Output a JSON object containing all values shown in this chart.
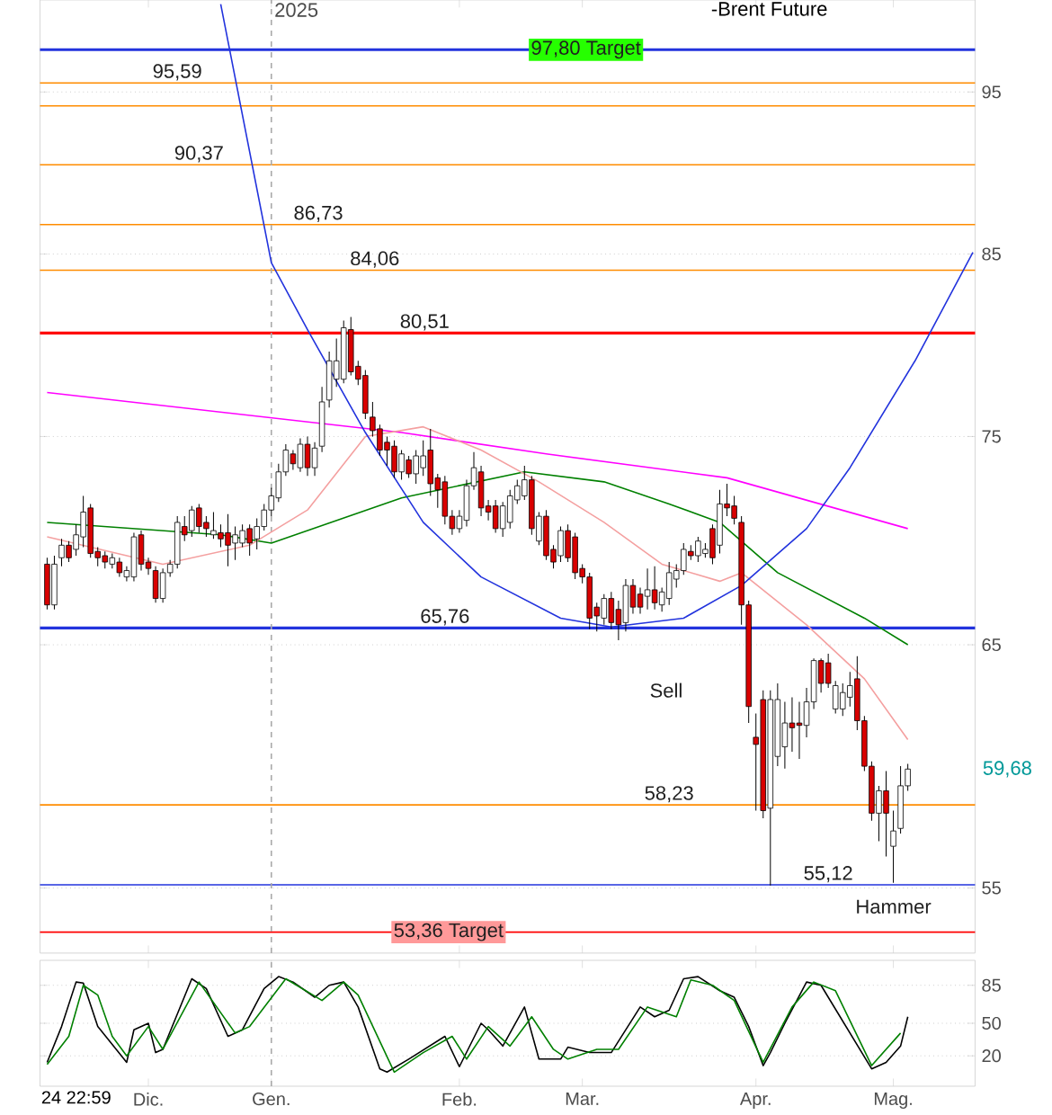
{
  "chart_data": [
    {
      "type": "candlestick",
      "title": "-Brent Future",
      "log": true,
      "grid": "y",
      "tick_labels": "y",
      "ylim": [
        52.6,
        101.2
      ],
      "yticks": [
        55,
        65,
        75,
        85,
        95
      ],
      "categories": [
        null,
        null,
        null,
        null,
        null,
        null,
        null,
        null,
        null,
        null,
        null,
        null,
        null,
        null,
        "Dic.",
        null,
        null,
        null,
        null,
        null,
        null,
        null,
        null,
        null,
        null,
        null,
        null,
        null,
        null,
        null,
        null,
        "Gen.",
        null,
        null,
        null,
        null,
        null,
        null,
        null,
        null,
        null,
        null,
        null,
        null,
        null,
        null,
        null,
        null,
        null,
        null,
        null,
        null,
        null,
        null,
        null,
        null,
        null,
        "Feb.",
        null,
        null,
        null,
        null,
        null,
        null,
        null,
        null,
        null,
        null,
        null,
        null,
        null,
        null,
        null,
        null,
        "Mar.",
        null,
        null,
        null,
        null,
        null,
        null,
        null,
        null,
        null,
        null,
        null,
        null,
        null,
        null,
        null,
        null,
        null,
        null,
        null,
        null,
        null,
        null,
        null,
        "Apr.",
        null,
        null,
        null,
        null,
        null,
        null,
        null,
        null,
        null,
        null,
        null,
        null,
        null,
        null,
        null,
        null,
        null,
        null,
        "Mag.",
        null,
        null,
        null,
        null,
        null,
        null,
        null,
        null,
        null,
        null,
        null
      ],
      "ohlc": [
        [
          68.7,
          69.0,
          66.6,
          66.8
        ],
        [
          66.8,
          69.1,
          66.6,
          68.7
        ],
        [
          69.0,
          69.9,
          68.6,
          69.6
        ],
        [
          69.6,
          69.8,
          68.8,
          69.0
        ],
        [
          69.4,
          70.6,
          69.1,
          70.1
        ],
        [
          70.0,
          72.0,
          69.5,
          71.2
        ],
        [
          71.4,
          71.6,
          69.0,
          69.2
        ],
        [
          69.3,
          69.5,
          68.6,
          69.0
        ],
        [
          69.1,
          69.3,
          68.5,
          68.8
        ],
        [
          68.7,
          69.2,
          68.5,
          69.0
        ],
        [
          68.8,
          69.0,
          68.1,
          68.3
        ],
        [
          68.1,
          68.6,
          67.9,
          68.4
        ],
        [
          68.1,
          70.2,
          67.9,
          70.0
        ],
        [
          70.1,
          70.3,
          68.4,
          68.7
        ],
        [
          68.8,
          69.0,
          68.2,
          68.5
        ],
        [
          68.4,
          68.6,
          66.9,
          67.1
        ],
        [
          67.1,
          68.5,
          66.9,
          68.3
        ],
        [
          68.3,
          68.9,
          68.1,
          68.7
        ],
        [
          68.7,
          71.0,
          68.5,
          70.7
        ],
        [
          70.5,
          71.0,
          69.8,
          70.1
        ],
        [
          70.3,
          71.5,
          70.0,
          71.3
        ],
        [
          71.4,
          71.6,
          70.2,
          70.5
        ],
        [
          70.7,
          71.0,
          70.0,
          70.4
        ],
        [
          70.1,
          71.2,
          69.9,
          70.3
        ],
        [
          70.2,
          70.6,
          69.5,
          69.9
        ],
        [
          70.2,
          71.1,
          68.6,
          69.6
        ],
        [
          69.7,
          70.5,
          68.9,
          70.1
        ],
        [
          69.7,
          70.6,
          69.5,
          70.3
        ],
        [
          70.4,
          70.6,
          69.1,
          69.7
        ],
        [
          69.9,
          70.9,
          69.4,
          70.5
        ],
        [
          70.5,
          71.6,
          70.3,
          71.3
        ],
        [
          71.3,
          72.4,
          71.0,
          72.0
        ],
        [
          71.9,
          73.6,
          71.7,
          73.2
        ],
        [
          73.2,
          74.6,
          73.0,
          74.3
        ],
        [
          74.1,
          74.3,
          73.3,
          73.6
        ],
        [
          73.4,
          74.9,
          73.2,
          74.6
        ],
        [
          74.6,
          75.0,
          73.0,
          73.4
        ],
        [
          73.4,
          74.7,
          73.0,
          74.4
        ],
        [
          74.5,
          77.6,
          74.2,
          76.8
        ],
        [
          76.9,
          79.5,
          76.5,
          79.0
        ],
        [
          78.0,
          80.2,
          77.6,
          79.0
        ],
        [
          78.0,
          81.2,
          77.8,
          80.8
        ],
        [
          80.7,
          81.4,
          78.2,
          78.4
        ],
        [
          78.7,
          79.0,
          77.7,
          78.0
        ],
        [
          78.2,
          78.5,
          75.9,
          76.2
        ],
        [
          76.0,
          76.8,
          75.0,
          75.3
        ],
        [
          75.4,
          75.6,
          74.0,
          74.3
        ],
        [
          74.7,
          75.0,
          73.5,
          74.3
        ],
        [
          74.5,
          74.8,
          72.9,
          73.2
        ],
        [
          73.2,
          74.3,
          72.8,
          74.1
        ],
        [
          73.8,
          74.0,
          72.9,
          73.1
        ],
        [
          73.1,
          74.3,
          72.6,
          74.0
        ],
        [
          73.4,
          74.8,
          73.0,
          74.0
        ],
        [
          74.3,
          75.4,
          72.0,
          72.6
        ],
        [
          72.9,
          73.1,
          71.4,
          72.3
        ],
        [
          72.7,
          73.0,
          70.6,
          71.0
        ],
        [
          71.0,
          71.3,
          70.1,
          70.4
        ],
        [
          70.4,
          71.3,
          70.2,
          71.0
        ],
        [
          70.8,
          72.8,
          70.5,
          72.5
        ],
        [
          72.5,
          74.2,
          72.3,
          73.4
        ],
        [
          73.2,
          73.5,
          71.0,
          71.4
        ],
        [
          71.5,
          71.8,
          70.8,
          71.2
        ],
        [
          71.5,
          71.8,
          70.2,
          70.4
        ],
        [
          70.4,
          71.7,
          70.0,
          71.5
        ],
        [
          70.7,
          72.3,
          70.4,
          72.0
        ],
        [
          71.8,
          72.8,
          71.6,
          72.5
        ],
        [
          72.0,
          73.5,
          71.8,
          72.8
        ],
        [
          72.8,
          73.0,
          70.1,
          70.4
        ],
        [
          69.8,
          71.2,
          69.6,
          71.0
        ],
        [
          71.0,
          71.3,
          68.9,
          69.1
        ],
        [
          69.4,
          69.6,
          68.5,
          68.8
        ],
        [
          69.1,
          70.5,
          68.8,
          70.3
        ],
        [
          70.3,
          70.6,
          68.8,
          69.0
        ],
        [
          70.0,
          70.2,
          68.0,
          68.3
        ],
        [
          68.5,
          68.7,
          67.8,
          68.1
        ],
        [
          68.1,
          68.3,
          65.7,
          66.2
        ],
        [
          66.7,
          66.9,
          65.6,
          66.3
        ],
        [
          66.2,
          67.3,
          65.9,
          67.1
        ],
        [
          67.1,
          67.4,
          65.7,
          66.0
        ],
        [
          66.6,
          67.0,
          65.2,
          65.9
        ],
        [
          66.0,
          68.0,
          65.6,
          67.7
        ],
        [
          67.7,
          68.0,
          66.4,
          66.7
        ],
        [
          67.3,
          67.6,
          66.4,
          66.7
        ],
        [
          67.2,
          68.5,
          66.6,
          67.5
        ],
        [
          67.5,
          68.6,
          66.6,
          66.9
        ],
        [
          66.8,
          67.6,
          66.5,
          67.4
        ],
        [
          67.1,
          68.8,
          66.8,
          68.3
        ],
        [
          68.0,
          68.7,
          67.6,
          68.4
        ],
        [
          68.4,
          69.7,
          68.2,
          69.4
        ],
        [
          69.3,
          69.6,
          68.9,
          69.1
        ],
        [
          69.1,
          70.0,
          68.8,
          69.8
        ],
        [
          69.2,
          69.7,
          69.0,
          69.4
        ],
        [
          70.4,
          70.6,
          68.7,
          69.0
        ],
        [
          69.6,
          72.3,
          69.2,
          71.6
        ],
        [
          71.6,
          72.6,
          71.0,
          71.4
        ],
        [
          71.5,
          72.0,
          70.6,
          70.9
        ],
        [
          70.7,
          71.0,
          65.9,
          66.8
        ],
        [
          66.8,
          67.0,
          61.6,
          62.3
        ],
        [
          61.0,
          62.0,
          58.0,
          60.7
        ],
        [
          62.6,
          63.0,
          57.7,
          58.0
        ],
        [
          58.1,
          63.0,
          55.1,
          62.6
        ],
        [
          60.2,
          63.3,
          59.8,
          62.6
        ],
        [
          60.6,
          62.5,
          59.7,
          61.6
        ],
        [
          61.6,
          62.7,
          60.4,
          61.4
        ],
        [
          61.6,
          62.5,
          60.1,
          61.5
        ],
        [
          61.5,
          63.1,
          61.0,
          62.5
        ],
        [
          62.5,
          64.4,
          62.2,
          64.3
        ],
        [
          64.3,
          64.4,
          62.9,
          63.3
        ],
        [
          64.2,
          64.6,
          63.1,
          63.3
        ],
        [
          62.2,
          63.4,
          62.0,
          63.2
        ],
        [
          62.2,
          63.3,
          61.9,
          62.9
        ],
        [
          62.7,
          63.8,
          62.3,
          63.2
        ],
        [
          63.5,
          64.5,
          61.3,
          61.7
        ],
        [
          61.7,
          61.9,
          59.6,
          59.8
        ],
        [
          59.8,
          60.0,
          57.6,
          57.9
        ],
        [
          57.9,
          59.0,
          56.8,
          58.8
        ],
        [
          58.8,
          59.6,
          56.2,
          57.9
        ],
        [
          56.6,
          58.0,
          55.2,
          57.2
        ],
        [
          57.3,
          59.8,
          57.1,
          59.0
        ],
        [
          59.0,
          59.9,
          58.8,
          59.68
        ],
        null,
        null,
        null,
        null,
        null,
        null,
        null,
        null,
        null
      ],
      "series": [
        {
          "type": "line",
          "color": "#008000",
          "values": [
            70.7,
            null,
            null,
            null,
            null,
            null,
            null,
            null,
            null,
            null,
            null,
            null,
            null,
            null,
            null,
            null,
            null,
            null,
            null,
            null,
            null,
            null,
            null,
            null,
            70.1,
            null,
            null,
            null,
            null,
            null,
            null,
            69.7,
            null,
            null,
            null,
            null,
            null,
            null,
            null,
            null,
            null,
            null,
            null,
            null,
            null,
            null,
            null,
            null,
            null,
            71.9,
            null,
            null,
            null,
            null,
            null,
            null,
            null,
            null,
            null,
            null,
            null,
            null,
            null,
            null,
            null,
            null,
            73.2,
            null,
            null,
            null,
            null,
            null,
            null,
            null,
            null,
            null,
            null,
            72.7,
            null,
            null,
            null,
            null,
            null,
            null,
            null,
            null,
            71.6,
            null,
            null,
            null,
            null,
            null,
            null,
            70.7,
            null,
            null,
            null,
            null,
            null,
            null,
            null,
            68.3,
            null,
            null,
            null,
            null,
            null,
            null,
            null,
            null,
            null,
            null,
            null,
            66.2,
            null,
            null,
            null,
            null,
            null,
            65.0,
            null,
            null,
            null,
            null,
            null,
            null,
            null,
            null,
            null
          ]
        },
        {
          "type": "line",
          "color": "#ff00ff",
          "values": [
            77.3,
            null,
            null,
            null,
            null,
            null,
            null,
            null,
            null,
            null,
            null,
            null,
            null,
            null,
            null,
            null,
            null,
            null,
            null,
            null,
            null,
            null,
            null,
            null,
            null,
            null,
            null,
            null,
            null,
            null,
            null,
            null,
            null,
            null,
            null,
            null,
            null,
            null,
            null,
            null,
            null,
            null,
            null,
            null,
            null,
            null,
            null,
            null,
            null,
            75.2,
            null,
            null,
            null,
            null,
            null,
            null,
            null,
            null,
            null,
            null,
            null,
            null,
            null,
            null,
            null,
            null,
            null,
            null,
            null,
            74.1,
            null,
            null,
            null,
            null,
            null,
            null,
            null,
            null,
            null,
            null,
            null,
            null,
            null,
            null,
            null,
            null,
            null,
            null,
            null,
            null,
            null,
            null,
            null,
            null,
            72.9,
            null,
            null,
            null,
            null,
            null,
            null,
            null,
            null,
            null,
            null,
            null,
            null,
            null,
            null,
            null,
            null,
            null,
            null,
            null,
            null,
            null,
            null,
            null,
            null,
            70.4,
            null,
            null,
            null,
            null,
            null,
            null,
            null,
            null,
            null
          ]
        },
        {
          "type": "line",
          "color": "#f4a0a0",
          "values": [
            70.0,
            null,
            null,
            null,
            null,
            null,
            null,
            null,
            null,
            null,
            null,
            null,
            null,
            null,
            null,
            null,
            68.7,
            null,
            null,
            null,
            null,
            null,
            null,
            null,
            null,
            null,
            null,
            null,
            69.6,
            null,
            null,
            null,
            null,
            null,
            null,
            null,
            71.3,
            null,
            null,
            null,
            null,
            null,
            null,
            null,
            75.0,
            null,
            null,
            null,
            null,
            null,
            null,
            null,
            75.5,
            null,
            null,
            null,
            null,
            null,
            null,
            null,
            74.3,
            null,
            null,
            null,
            null,
            null,
            null,
            null,
            72.7,
            null,
            null,
            null,
            null,
            null,
            null,
            null,
            null,
            70.7,
            null,
            null,
            null,
            null,
            null,
            null,
            null,
            68.7,
            null,
            null,
            null,
            null,
            null,
            null,
            null,
            67.9,
            null,
            null,
            68.3,
            null,
            null,
            null,
            null,
            null,
            null,
            null,
            null,
            65.9,
            null,
            null,
            null,
            null,
            null,
            null,
            null,
            63.5,
            null,
            null,
            null,
            null,
            null,
            60.9,
            null,
            null,
            null,
            null,
            null,
            null,
            null,
            null,
            null
          ]
        },
        {
          "type": "line",
          "color": "#2233dd",
          "values": [
            null,
            null,
            null,
            null,
            null,
            null,
            null,
            null,
            null,
            null,
            null,
            null,
            null,
            null,
            null,
            null,
            null,
            null,
            null,
            null,
            null,
            null,
            null,
            null,
            100.9,
            null,
            null,
            null,
            null,
            null,
            null,
            84.5,
            null,
            null,
            null,
            null,
            80.7,
            null,
            null,
            null,
            null,
            null,
            null,
            null,
            75.2,
            null,
            null,
            null,
            null,
            null,
            null,
            null,
            70.7,
            null,
            null,
            null,
            null,
            null,
            null,
            null,
            68.1,
            null,
            null,
            null,
            null,
            null,
            null,
            null,
            null,
            null,
            null,
            66.2,
            null,
            null,
            null,
            null,
            null,
            null,
            65.8,
            null,
            null,
            null,
            null,
            null,
            null,
            null,
            null,
            null,
            66.2,
            null,
            null,
            null,
            null,
            null,
            null,
            null,
            67.7,
            null,
            null,
            null,
            null,
            null,
            null,
            null,
            null,
            70.4,
            null,
            null,
            null,
            null,
            null,
            73.4,
            null,
            null,
            null,
            null,
            null,
            null,
            null,
            null,
            79.0,
            null,
            null,
            null,
            null,
            null,
            null,
            null,
            85.1
          ]
        }
      ],
      "ref_lines": [
        {
          "axis": "y",
          "value": 97.8,
          "label": "97,80 Target",
          "color": "#2233dd"
        },
        {
          "axis": "y",
          "value": 95.59,
          "label": "95,59",
          "color": "#ff8c00"
        },
        {
          "axis": "y",
          "value": 94.1,
          "color": "#ff8c00"
        },
        {
          "axis": "y",
          "value": 90.37,
          "label": "90,37",
          "color": "#ff8c00"
        },
        {
          "axis": "y",
          "value": 86.73,
          "label": "86,73",
          "color": "#ff8c00"
        },
        {
          "axis": "y",
          "value": 84.06,
          "label": "84,06",
          "color": "#ff8c00"
        },
        {
          "axis": "y",
          "value": 80.51,
          "label": "80,51",
          "color": "#ff0000"
        },
        {
          "axis": "y",
          "value": 65.76,
          "label": "65,76",
          "color": "#2233dd"
        },
        {
          "axis": "y",
          "value": 58.23,
          "label": "58,23",
          "color": "#ff8c00"
        },
        {
          "axis": "y",
          "value": 55.12,
          "label": "55,12",
          "color": "#2233dd"
        },
        {
          "axis": "y",
          "value": 53.36,
          "label": "53,36 Target",
          "color": "#ff0000"
        },
        {
          "axis": "x",
          "value": "Gen.",
          "label": "2025",
          "color": "#aaaaaa",
          "line_style": "dashed"
        }
      ],
      "annotations": [
        "Sell",
        "Hammer",
        "59,68"
      ]
    },
    {
      "type": "line",
      "grid": "y",
      "ylim": [
        -8,
        108
      ],
      "categories": [
        null,
        null,
        null,
        null,
        null,
        null,
        null,
        null,
        null,
        null,
        null,
        null,
        null,
        null,
        "Dic.",
        null,
        null,
        null,
        null,
        null,
        null,
        null,
        null,
        null,
        null,
        null,
        null,
        null,
        null,
        null,
        null,
        "Gen.",
        null,
        null,
        null,
        null,
        null,
        null,
        null,
        null,
        null,
        null,
        null,
        null,
        null,
        null,
        null,
        null,
        null,
        null,
        null,
        null,
        null,
        null,
        null,
        null,
        null,
        "Feb.",
        null,
        null,
        null,
        null,
        null,
        null,
        null,
        null,
        null,
        null,
        null,
        null,
        null,
        null,
        null,
        null,
        "Mar.",
        null,
        null,
        null,
        null,
        null,
        null,
        null,
        null,
        null,
        null,
        null,
        null,
        null,
        null,
        null,
        null,
        null,
        null,
        null,
        null,
        null,
        null,
        null,
        "Apr.",
        null,
        null,
        null,
        null,
        null,
        null,
        null,
        null,
        null,
        null,
        null,
        null,
        null,
        null,
        null,
        null,
        null,
        null,
        "Mag.",
        null,
        null,
        null,
        null,
        null,
        null,
        null,
        null,
        null,
        null,
        null
      ],
      "yticks": [
        20,
        50,
        85
      ],
      "series": [
        {
          "color": "#000000",
          "values": [
            14,
            null,
            47,
            null,
            88,
            87,
            null,
            47,
            null,
            null,
            null,
            14,
            44,
            null,
            50,
            23,
            26,
            null,
            null,
            null,
            91,
            null,
            82,
            null,
            null,
            38,
            null,
            44,
            null,
            null,
            82,
            null,
            93,
            null,
            88,
            null,
            null,
            74,
            null,
            85,
            null,
            88,
            null,
            65,
            null,
            null,
            8,
            5,
            null,
            null,
            17,
            null,
            null,
            null,
            null,
            38,
            null,
            10,
            null,
            null,
            50,
            44,
            null,
            29,
            null,
            null,
            65,
            null,
            17,
            null,
            null,
            17,
            28,
            null,
            null,
            23,
            null,
            null,
            23,
            null,
            null,
            null,
            65,
            null,
            56,
            null,
            62,
            null,
            91,
            null,
            93,
            null,
            null,
            80,
            null,
            74,
            null,
            47,
            null,
            11,
            23,
            null,
            50,
            null,
            null,
            88,
            null,
            85,
            null,
            null,
            null,
            null,
            null,
            null,
            8,
            null,
            14,
            null,
            29,
            56,
            null,
            null,
            null,
            null,
            null,
            null,
            null,
            null,
            null
          ]
        },
        {
          "color": "#008000",
          "values": [
            12,
            null,
            null,
            38,
            null,
            85,
            null,
            76,
            null,
            38,
            null,
            20,
            null,
            null,
            47,
            null,
            26,
            null,
            null,
            null,
            null,
            88,
            null,
            null,
            null,
            null,
            41,
            null,
            47,
            null,
            null,
            null,
            null,
            91,
            null,
            null,
            null,
            null,
            71,
            null,
            null,
            88,
            null,
            76,
            null,
            null,
            null,
            null,
            5,
            null,
            null,
            null,
            23,
            null,
            null,
            null,
            38,
            null,
            17,
            null,
            null,
            47,
            null,
            null,
            29,
            null,
            null,
            56,
            null,
            null,
            26,
            null,
            17,
            null,
            null,
            null,
            26,
            null,
            null,
            26,
            null,
            null,
            null,
            65,
            null,
            null,
            null,
            56,
            null,
            90,
            null,
            null,
            85,
            null,
            null,
            71,
            null,
            null,
            null,
            14,
            null,
            null,
            null,
            65,
            null,
            null,
            88,
            null,
            null,
            80,
            null,
            null,
            null,
            null,
            11,
            null,
            null,
            null,
            41,
            null,
            null,
            null,
            null,
            null,
            null,
            null,
            null,
            null,
            null
          ]
        }
      ],
      "ref_lines": [
        {
          "axis": "x",
          "value": "Gen.",
          "color": "#aaaaaa",
          "line_style": "dashed"
        }
      ],
      "annotations": [
        "24 22:59"
      ]
    }
  ]
}
